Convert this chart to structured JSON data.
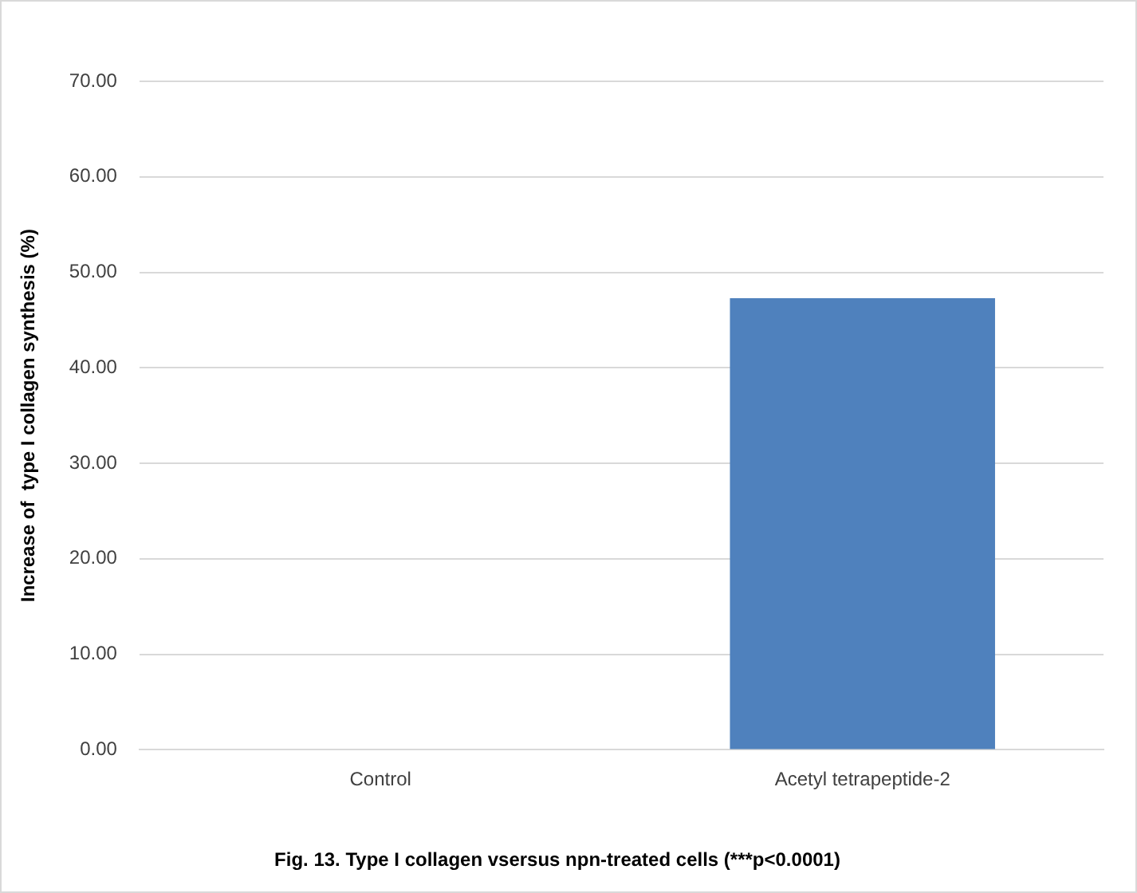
{
  "chart_data": {
    "type": "bar",
    "title": "Fig. 13. Type I collagen vsersus npn-treated cells (***p<0.0001)",
    "ylabel": "Increase of  type I collagen synthesis (%)",
    "categories": [
      "Control",
      "Acetyl tetrapeptide-2"
    ],
    "values": [
      0,
      47.3
    ],
    "color": "#4f81bd",
    "ylim": [
      0,
      70
    ],
    "yticks": [
      {
        "value": 0,
        "label": "0.00"
      },
      {
        "value": 10,
        "label": "10.00"
      },
      {
        "value": 20,
        "label": "20.00"
      },
      {
        "value": 30,
        "label": "30.00"
      },
      {
        "value": 40,
        "label": "40.00"
      },
      {
        "value": 50,
        "label": "50.00"
      },
      {
        "value": 60,
        "label": "60.00"
      },
      {
        "value": 70,
        "label": "70.00"
      }
    ],
    "grid": "y"
  }
}
